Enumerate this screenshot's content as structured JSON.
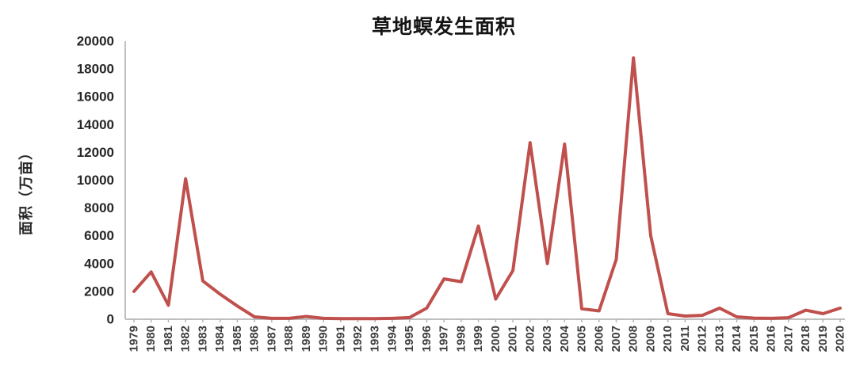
{
  "chart_data": {
    "type": "line",
    "title": "草地螟发生面积",
    "ylabel": "面积（万亩）",
    "xlabel": "",
    "ylim": [
      0,
      20000
    ],
    "ytick_step": 2000,
    "yticks": [
      0,
      2000,
      4000,
      6000,
      8000,
      10000,
      12000,
      14000,
      16000,
      18000,
      20000
    ],
    "categories": [
      "1979",
      "1980",
      "1981",
      "1982",
      "1983",
      "1984",
      "1985",
      "1986",
      "1987",
      "1988",
      "1989",
      "1990",
      "1991",
      "1992",
      "1993",
      "1994",
      "1995",
      "1996",
      "1997",
      "1998",
      "1999",
      "2000",
      "2001",
      "2002",
      "2003",
      "2004",
      "2005",
      "2006",
      "2007",
      "2008",
      "2009",
      "2010",
      "2011",
      "2012",
      "2013",
      "2014",
      "2015",
      "2016",
      "2017",
      "2018",
      "2019",
      "2020"
    ],
    "values": [
      2000,
      3400,
      1000,
      10100,
      2750,
      1800,
      950,
      170,
      60,
      60,
      200,
      60,
      40,
      40,
      40,
      60,
      120,
      800,
      2900,
      2700,
      6700,
      1450,
      3500,
      12700,
      4000,
      12600,
      750,
      600,
      4300,
      18800,
      6000,
      400,
      230,
      280,
      800,
      170,
      80,
      60,
      110,
      650,
      400,
      800
    ],
    "grid": false,
    "legend": false,
    "colors": {
      "line": "#c0504d",
      "axis": "#bfbfbf",
      "tick": "#b3b3b3",
      "ytick_text": "#262626",
      "xtick_text": "#3d3d3d",
      "title_text": "#141414"
    }
  }
}
